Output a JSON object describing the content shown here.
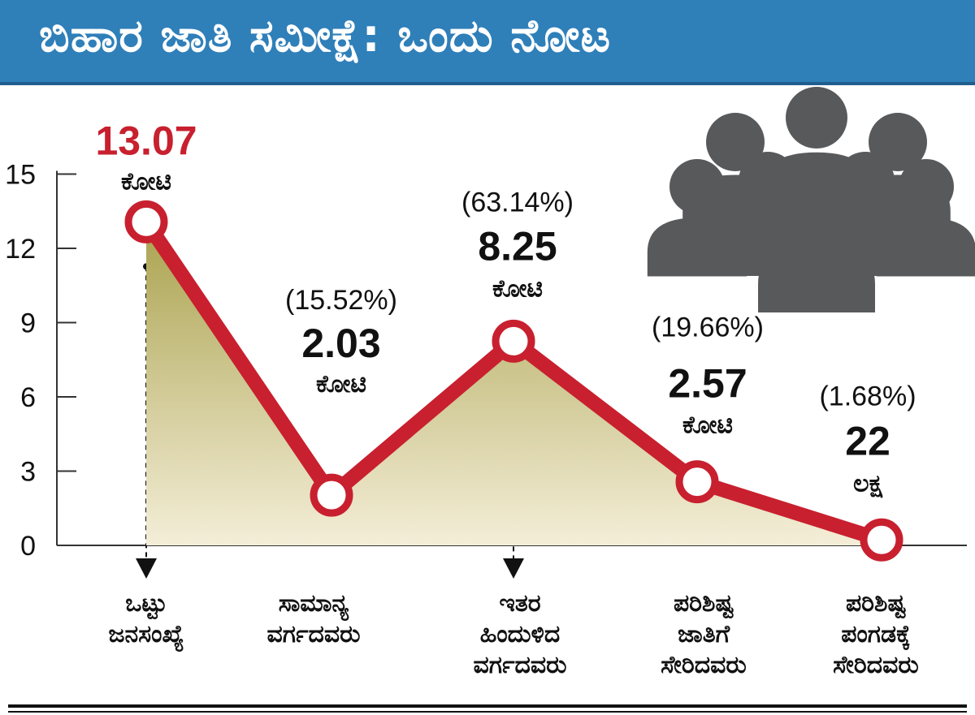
{
  "title": "ಬಿಹಾರ ಜಾತಿ ಸಮೀಕ್ಷೆ: ಒಂದು ನೋಟ",
  "colors": {
    "header_bg": "#2f7fb9",
    "line": "#c8202f",
    "area_top": "#aaa24e",
    "area_bottom": "#f4eed8",
    "people_icon": "#58595b"
  },
  "chart_data": {
    "type": "area",
    "title": "ಬಿಹಾರ ಜಾತಿ ಸಮೀಕ್ಷೆ: ಒಂದು ನೋಟ",
    "xlabel": "",
    "ylabel": "",
    "ylim": [
      0,
      15
    ],
    "yticks": [
      "0",
      "3",
      "6",
      "9",
      "12",
      "15"
    ],
    "grid": false,
    "series": [
      {
        "values": [
          13.07,
          2.03,
          8.25,
          2.57,
          0.22
        ]
      }
    ],
    "categories": [
      [
        "ಒಟ್ಟು",
        "ಜನಸಂಖ್ಯೆ"
      ],
      [
        "ಸಾಮಾನ್ಯ",
        "ವರ್ಗದವರು"
      ],
      [
        "ಇತರ",
        "ಹಿಂದುಳಿದ",
        "ವರ್ಗದವರು"
      ],
      [
        "ಪರಿಶಿಷ್ಟ",
        "ಜಾತಿಗೆ",
        "ಸೇರಿದವರು"
      ],
      [
        "ಪರಿಶಿಷ್ಟ",
        "ಪಂಗಡಕ್ಕೆ",
        "ಸೇರಿದವರು"
      ]
    ],
    "data_labels": [
      {
        "pct": "",
        "value": "13.07",
        "unit": "ಕೋಟಿ",
        "highlight": true
      },
      {
        "pct": "(15.52%)",
        "value": "2.03",
        "unit": "ಕೋಟಿ",
        "highlight": false
      },
      {
        "pct": "(63.14%)",
        "value": "8.25",
        "unit": "ಕೋಟಿ",
        "highlight": false
      },
      {
        "pct": "(19.66%)",
        "value": "2.57",
        "unit": "ಕೋಟಿ",
        "highlight": false
      },
      {
        "pct": "(1.68%)",
        "value": "22",
        "unit": "ಲಕ್ಷ",
        "highlight": false
      }
    ],
    "arrows_to_category": [
      0,
      2
    ]
  }
}
